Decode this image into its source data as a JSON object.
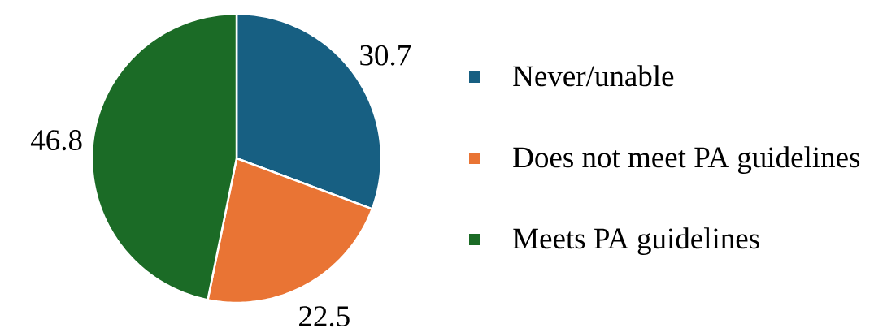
{
  "chart_data": {
    "type": "pie",
    "categories": [
      "Never/unable",
      "Does not meet PA guidelines",
      "Meets PA guidelines"
    ],
    "values": [
      30.7,
      22.5,
      46.8
    ],
    "colors": [
      "#175f82",
      "#e97434",
      "#1b6b26"
    ],
    "data_labels": true,
    "legend": "right"
  }
}
